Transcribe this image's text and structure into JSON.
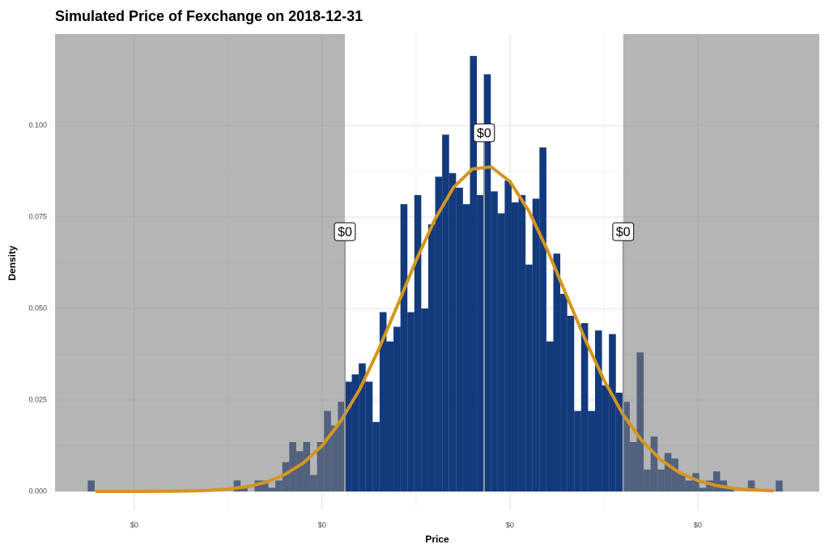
{
  "chart_data": {
    "type": "histogram",
    "title": "Simulated Price of Fexchange on 2018-12-31",
    "x_label": "Price",
    "y_label": "Density",
    "bins": [
      0.0752,
      0.0789,
      0.0826,
      0.0863,
      0.09,
      0.0937,
      0.0974,
      0.1011,
      0.1048,
      0.1085,
      0.1122,
      0.1159,
      0.1196,
      0.1233,
      0.127,
      0.1307,
      0.1344,
      0.1381,
      0.1418,
      0.1455,
      0.1492,
      0.1529,
      0.1566,
      0.1603,
      0.164,
      0.1677,
      0.1714,
      0.1751,
      0.1788,
      0.1825,
      0.1862,
      0.1899,
      0.1936,
      0.1973,
      0.201,
      0.2047,
      0.2084,
      0.2121,
      0.2158,
      0.2195,
      0.2232,
      0.2269,
      0.2306,
      0.2343,
      0.238,
      0.2417,
      0.2454,
      0.2491,
      0.2528,
      0.2565,
      0.2602,
      0.2639,
      0.2676,
      0.2713,
      0.275,
      0.2787,
      0.2824,
      0.2861,
      0.2898,
      0.2935,
      0.2972,
      0.3009,
      0.3046,
      0.3083,
      0.312,
      0.3157,
      0.3194,
      0.3231,
      0.3268,
      0.3305,
      0.3342,
      0.3379,
      0.3416,
      0.3453,
      0.349,
      0.3527,
      0.3564,
      0.3601,
      0.3638,
      0.3675,
      0.3712,
      0.3749,
      0.3786,
      0.3823,
      0.386,
      0.3897,
      0.3934,
      0.3971,
      0.4008,
      0.4045,
      0.4082,
      0.4119,
      0.4156,
      0.4193,
      0.423,
      0.4267,
      0.4304,
      0.4341,
      0.4378,
      0.4415,
      0.4452
    ],
    "values": [
      0.003,
      0,
      0,
      0,
      0,
      0,
      0,
      0,
      0,
      0,
      0,
      0,
      0,
      0,
      0,
      0,
      0,
      0,
      0,
      0,
      0,
      0.003,
      0.001,
      0,
      0.003,
      0.003,
      0.001,
      0.003,
      0.008,
      0.0135,
      0.011,
      0.0135,
      0.0045,
      0.0135,
      0.022,
      0.018,
      0.0245,
      0.03,
      0.032,
      0.035,
      0.03,
      0.019,
      0.049,
      0.041,
      0.045,
      0.0785,
      0.049,
      0.081,
      0.05,
      0.073,
      0.086,
      0.0975,
      0.087,
      0.083,
      0.0785,
      0.119,
      0.081,
      0.114,
      0.082,
      0.076,
      0.085,
      0.079,
      0.081,
      0.062,
      0.08,
      0.094,
      0.041,
      0.065,
      0.054,
      0.048,
      0.022,
      0.046,
      0.022,
      0.044,
      0.029,
      0.043,
      0.027,
      0.0245,
      0.0135,
      0.038,
      0.006,
      0.015,
      0.006,
      0.0105,
      0.009,
      0.005,
      0.003,
      0.005,
      0.001,
      0.003,
      0.0055,
      0.003,
      0.001,
      0,
      0,
      0.003,
      0,
      0,
      0,
      0.003
    ],
    "color": "#133a7c",
    "curve": {
      "color": "#d4961f",
      "x": [
        0.08,
        0.09,
        0.1,
        0.11,
        0.12,
        0.13,
        0.14,
        0.15,
        0.16,
        0.17,
        0.18,
        0.19,
        0.2,
        0.21,
        0.22,
        0.23,
        0.24,
        0.25,
        0.26,
        0.27,
        0.28,
        0.29,
        0.3,
        0.31,
        0.32,
        0.33,
        0.34,
        0.35,
        0.36,
        0.37,
        0.38,
        0.39,
        0.4,
        0.41,
        0.42,
        0.43,
        0.44
      ],
      "values": [
        0,
        0,
        1e-05,
        3e-05,
        6e-05,
        0.00014,
        0.0003,
        0.0007,
        0.0013,
        0.0025,
        0.0046,
        0.0078,
        0.0125,
        0.0193,
        0.0279,
        0.0387,
        0.0507,
        0.0631,
        0.0743,
        0.0831,
        0.0881,
        0.0887,
        0.0847,
        0.0767,
        0.0659,
        0.0537,
        0.0416,
        0.0305,
        0.0212,
        0.014,
        0.0088,
        0.0052,
        0.003,
        0.0016,
        0.0008,
        0.0004,
        0.0002
      ]
    },
    "markers": [
      {
        "x": 0.2121,
        "y": 0.071,
        "label": "$0"
      },
      {
        "x": 0.2862,
        "y": 0.098,
        "label": "$0"
      },
      {
        "x": 0.3603,
        "y": 0.071,
        "label": "$0"
      }
    ],
    "shade_color": "#808080",
    "xlim": [
      0.0578,
      0.4647
    ],
    "ylim": [
      0,
      0.125
    ],
    "xticks": [
      {
        "value": 0.1,
        "label": "$0"
      },
      {
        "value": 0.2,
        "label": "$0"
      },
      {
        "value": 0.3,
        "label": "$0"
      },
      {
        "value": 0.4,
        "label": "$0"
      }
    ],
    "yticks": [
      {
        "value": 0,
        "label": "0.000"
      },
      0.025,
      {
        "value": 0.05,
        "label": "0.050"
      },
      0.075,
      {
        "value": 0.1,
        "label": "0.100"
      }
    ],
    "grid": true
  }
}
